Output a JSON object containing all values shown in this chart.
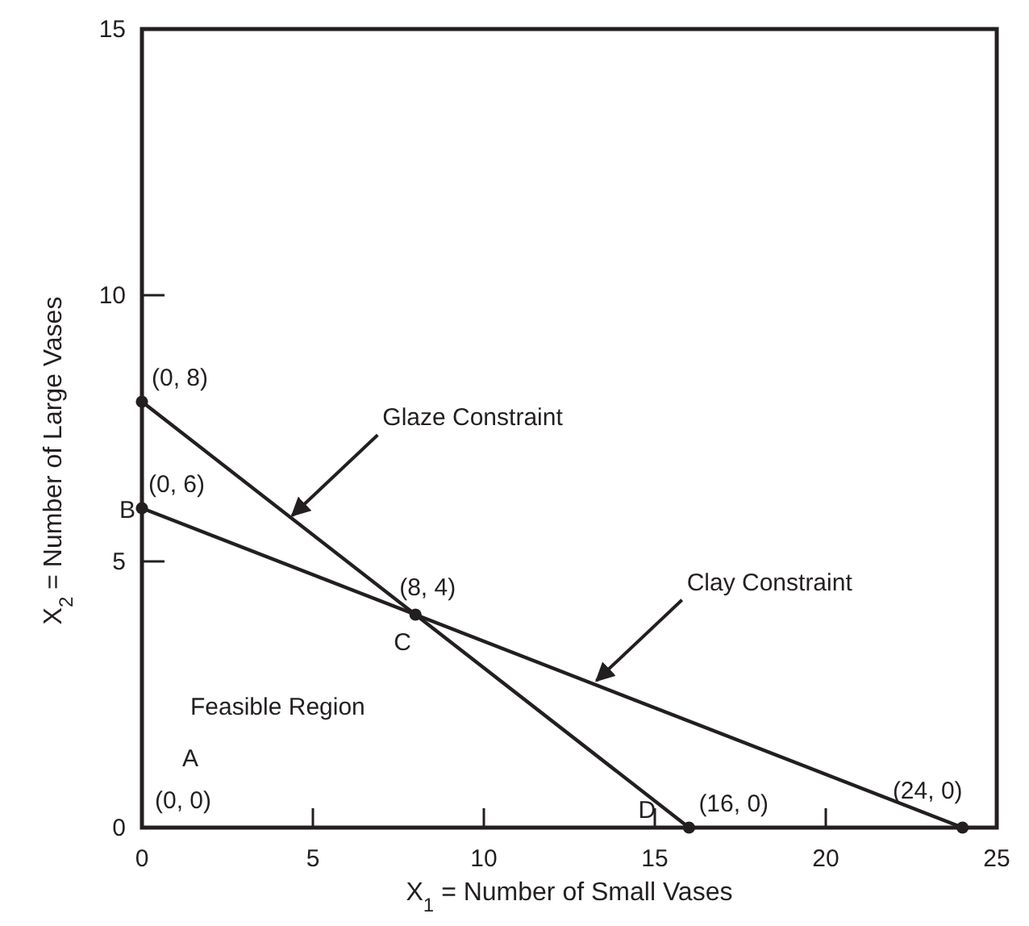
{
  "chart_data": {
    "type": "line",
    "xlabel": "X$_{1}$ = Number of Small Vases",
    "ylabel": "X$_{2}$ = Number of Large Vases",
    "xlim": [
      0,
      25
    ],
    "xticks": [
      0,
      5,
      10,
      15,
      20,
      25
    ],
    "ylim": [
      0,
      15
    ],
    "yticks": [
      0,
      5,
      10,
      15
    ],
    "series": [
      {
        "color": "#231f20",
        "x": [
          0,
          16
        ],
        "values": [
          8,
          0
        ],
        "marker": "none"
      },
      {
        "color": "#231f20",
        "x": [
          0,
          24
        ],
        "values": [
          6,
          0
        ],
        "marker": "none"
      },
      {
        "type": "scatter",
        "color": "#231f20",
        "x": [
          0,
          0,
          8,
          16,
          24
        ],
        "values": [
          8,
          6,
          4,
          0,
          0
        ],
        "marker": "circle",
        "value_labels": [
          "(0, 8)",
          "(0, 6)",
          "(8, 4)",
          "(16, 0)",
          "(24, 0)"
        ]
      }
    ],
    "annotations": [
      {
        "text": "Glaze Constraint",
        "x": 4.3,
        "y": 5.8
      },
      {
        "text": "Clay Constraint",
        "x": 13.2,
        "y": 2.7
      },
      "Feasible Region",
      "A",
      "(0, 0)",
      {
        "text": "B",
        "x": 0,
        "y": 6
      },
      {
        "text": "C",
        "x": 8,
        "y": 4
      },
      {
        "text": "D",
        "x": 16,
        "y": 0
      }
    ]
  }
}
